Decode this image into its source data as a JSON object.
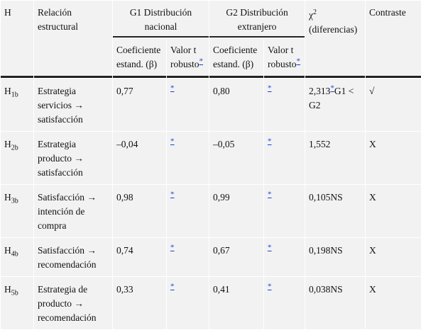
{
  "header": {
    "h": "H",
    "relation": "Relación estructural",
    "g1": "G1 Distribución nacional",
    "g2": "G2 Distribución extranjero",
    "chi": "χ",
    "chi_sup": "2",
    "chi_label": "(diferencias)",
    "contrast": "Contraste"
  },
  "subheaders": [
    {
      "coef": "Coeficiente estand. (β)",
      "valor": "Valor t robusto",
      "valor_sup": "*"
    },
    {
      "coef": "Coeficiente estand. (β)",
      "valor": "Valor t robusto",
      "valor_sup": "*"
    }
  ],
  "rows": [
    {
      "h": "H",
      "h_sub": "1b",
      "relation": "Estrategia servicios → satisfacción",
      "g1_coef": "0,77",
      "g1_t": "*",
      "g2_coef": "0,80",
      "g2_t": "*",
      "chi": "2,313",
      "chi_sup": "*",
      "chi_note": "G1 < G2",
      "contrast": "√"
    },
    {
      "h": "H",
      "h_sub": "2b",
      "relation": "Estrategia producto → satisfacción",
      "g1_coef": "–0,04",
      "g1_t": "*",
      "g2_coef": "–0,05",
      "g2_t": "*",
      "chi": "1,552",
      "contrast": "X"
    },
    {
      "h": "H",
      "h_sub": "3b",
      "relation": "Satisfacción → intención de compra",
      "g1_coef": "0,98",
      "g1_t": "*",
      "g2_coef": "0,99",
      "g2_t": "*",
      "chi": "0,105NS",
      "contrast": "X"
    },
    {
      "h": "H",
      "h_sub": "4b",
      "relation": "Satisfacción → recomendación",
      "g1_coef": "0,74",
      "g1_t": "*",
      "g2_coef": "0,67",
      "g2_t": "*",
      "chi": "0,198NS",
      "contrast": "X"
    },
    {
      "h": "H",
      "h_sub": "5b",
      "relation": "Estrategia de producto → recomendación",
      "g1_coef": "0,33",
      "g1_t": "*",
      "g2_coef": "0,41",
      "g2_t": "*",
      "chi": "0,038NS",
      "contrast": "X"
    }
  ]
}
